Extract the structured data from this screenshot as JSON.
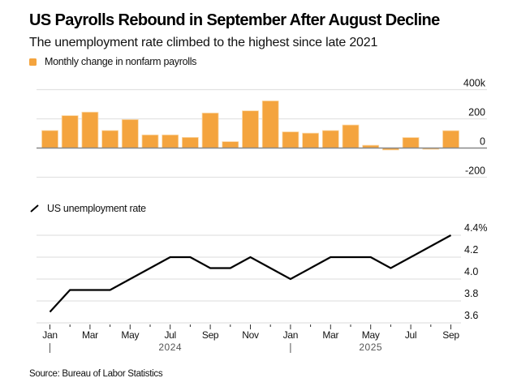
{
  "header": {
    "title": "US Payrolls Rebound in September After August Decline",
    "subtitle": "The unemployment rate climbed to the highest since late 2021"
  },
  "colors": {
    "bar": "#f4a43e",
    "bar_edge": "#fbd9a8",
    "line": "#000000",
    "grid": "#e2e2e2",
    "axis": "#888888"
  },
  "chart_data": [
    {
      "type": "bar",
      "legend": "Monthly change in nonfarm payrolls",
      "categories": [
        "Jan 2024",
        "Feb 2024",
        "Mar 2024",
        "Apr 2024",
        "May 2024",
        "Jun 2024",
        "Jul 2024",
        "Aug 2024",
        "Sep 2024",
        "Oct 2024",
        "Nov 2024",
        "Dec 2024",
        "Jan 2025",
        "Feb 2025",
        "Mar 2025",
        "Apr 2025",
        "May 2025",
        "Jun 2025",
        "Jul 2025",
        "Aug 2025",
        "Sep 2025"
      ],
      "values": [
        120,
        222,
        246,
        120,
        195,
        90,
        90,
        73,
        240,
        44,
        255,
        323,
        111,
        102,
        120,
        158,
        19,
        -13,
        72,
        -4,
        119
      ],
      "ylim": [
        -200,
        400
      ],
      "yticks": [
        400,
        200,
        0,
        -200
      ],
      "ytick_labels": [
        "400k",
        "200",
        "0",
        "-200"
      ],
      "grid": true,
      "units": "thousands of jobs"
    },
    {
      "type": "line",
      "legend": "US unemployment rate",
      "categories": [
        "Jan 2024",
        "Feb 2024",
        "Mar 2024",
        "Apr 2024",
        "May 2024",
        "Jun 2024",
        "Jul 2024",
        "Aug 2024",
        "Sep 2024",
        "Oct 2024",
        "Nov 2024",
        "Dec 2024",
        "Jan 2025",
        "Feb 2025",
        "Mar 2025",
        "Apr 2025",
        "May 2025",
        "Jun 2025",
        "Jul 2025",
        "Aug 2025",
        "Sep 2025"
      ],
      "values": [
        3.7,
        3.9,
        3.9,
        3.9,
        4.0,
        4.1,
        4.2,
        4.2,
        4.1,
        4.1,
        4.2,
        4.1,
        4.0,
        4.1,
        4.2,
        4.2,
        4.2,
        4.1,
        4.2,
        4.3,
        4.4
      ],
      "ylim": [
        3.6,
        4.4
      ],
      "yticks": [
        4.4,
        4.2,
        4.0,
        3.8,
        3.6
      ],
      "ytick_labels": [
        "4.4%",
        "4.2",
        "4.0",
        "3.8",
        "3.6"
      ],
      "xtick_labels": [
        "Jan",
        "Mar",
        "May",
        "Jul",
        "Sep",
        "Nov",
        "Jan",
        "Mar",
        "May",
        "Jul",
        "Sep"
      ],
      "year_labels": [
        "2024",
        "2025"
      ],
      "grid": true,
      "units": "percent"
    }
  ],
  "footer": {
    "source": "Source: Bureau of Labor Statistics"
  }
}
